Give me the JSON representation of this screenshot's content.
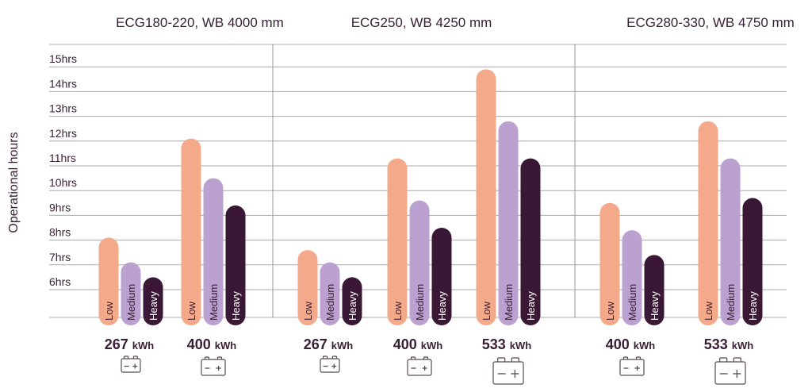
{
  "chart_data": {
    "type": "bar",
    "ylabel": "Operational hours",
    "y_unit_suffix": "hrs",
    "y_ticks": [
      6,
      7,
      8,
      9,
      10,
      11,
      12,
      13,
      14,
      15
    ],
    "ylim": [
      5,
      15.5
    ],
    "legend": "none",
    "grid": true,
    "series_names": [
      "Low",
      "Medium",
      "Heavy"
    ],
    "colors": {
      "Low": "#f4a98a",
      "Medium": "#bba1cf",
      "Heavy": "#3a1734",
      "text": "#3a1e35",
      "grid": "#a8a8a8"
    },
    "groups": [
      {
        "title": "ECG180-220, WB 4000 mm",
        "batteries": [
          {
            "capacity": "267",
            "unit": "kWh",
            "values": {
              "Low": 8.1,
              "Medium": 7.1,
              "Heavy": 6.5
            },
            "icon": "battery-small-icon"
          },
          {
            "capacity": "400",
            "unit": "kWh",
            "values": {
              "Low": 12.1,
              "Medium": 10.5,
              "Heavy": 9.4
            },
            "icon": "battery-medium-icon"
          }
        ]
      },
      {
        "title": "ECG250, WB 4250 mm",
        "batteries": [
          {
            "capacity": "267",
            "unit": "kWh",
            "values": {
              "Low": 7.6,
              "Medium": 7.1,
              "Heavy": 6.5
            },
            "icon": "battery-small-icon"
          },
          {
            "capacity": "400",
            "unit": "kWh",
            "values": {
              "Low": 11.3,
              "Medium": 9.6,
              "Heavy": 8.5
            },
            "icon": "battery-medium-icon"
          },
          {
            "capacity": "533",
            "unit": "kWh",
            "values": {
              "Low": 14.9,
              "Medium": 12.8,
              "Heavy": 11.3
            },
            "icon": "battery-large-icon"
          }
        ]
      },
      {
        "title": "ECG280-330, WB 4750 mm",
        "batteries": [
          {
            "capacity": "400",
            "unit": "kWh",
            "values": {
              "Low": 9.5,
              "Medium": 8.4,
              "Heavy": 7.4
            },
            "icon": "battery-medium-icon"
          },
          {
            "capacity": "533",
            "unit": "kWh",
            "values": {
              "Low": 12.8,
              "Medium": 11.3,
              "Heavy": 9.7
            },
            "icon": "battery-large-icon"
          }
        ]
      }
    ]
  }
}
